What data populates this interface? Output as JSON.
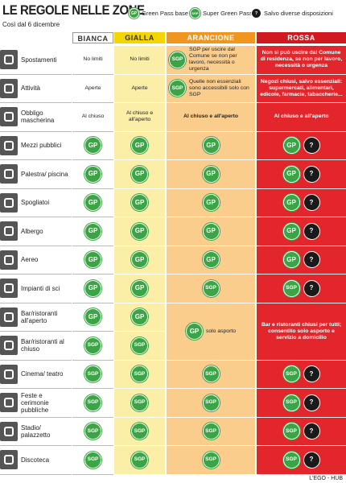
{
  "header": {
    "title": "LE REGOLE NELLE ZONE",
    "subtitle": "Così dal 6 dicembre",
    "legend": [
      {
        "icon": "GP",
        "label": "Green Pass base"
      },
      {
        "icon": "SGP",
        "label": "Super Green Pass"
      },
      {
        "icon": "?",
        "label": "Salvo diverse disposizioni"
      }
    ]
  },
  "table": {
    "columns": [
      "BIANCA",
      "GIALLA",
      "ARANCIONE",
      "ROSSA"
    ],
    "rows": [
      {
        "label": "Spostamenti",
        "cells": [
          {
            "text": "No limiti"
          },
          {
            "text": "No limiti"
          },
          {
            "badges": [
              "SGP"
            ],
            "text": "SGP per uscire dal Comune se non per lavoro, necessità o urgenza"
          },
          {
            "text": "Non si può uscire dal Comune di residenza, se non per lavoro, necessità o urgenza"
          }
        ]
      },
      {
        "label": "Attività",
        "cells": [
          {
            "text": "Aperte"
          },
          {
            "text": "Aperte"
          },
          {
            "badges": [
              "SGP"
            ],
            "text": "Quelle non essenziali sono accessibili solo con SGP"
          },
          {
            "text": "Negozi chiusi, salvo essenziali: supermercati, alimentari, edicole, farmacie, tabaccherie..."
          }
        ]
      },
      {
        "label": "Obbligo mascherina",
        "cells": [
          {
            "text": "Al chiuso"
          },
          {
            "text": "Al chiuso e all'aperto"
          },
          {
            "text": "Al chiuso e all'aperto"
          },
          {
            "text": "Al chiuso e all'aperto"
          }
        ]
      },
      {
        "label": "Mezzi pubblici",
        "cells": [
          {
            "badges": [
              "GP"
            ]
          },
          {
            "badges": [
              "GP"
            ]
          },
          {
            "badges": [
              "GP"
            ]
          },
          {
            "badges": [
              "GP",
              "?"
            ]
          }
        ]
      },
      {
        "label": "Palestra/ piscina",
        "cells": [
          {
            "badges": [
              "GP"
            ]
          },
          {
            "badges": [
              "GP"
            ]
          },
          {
            "badges": [
              "GP"
            ]
          },
          {
            "badges": [
              "GP",
              "?"
            ]
          }
        ]
      },
      {
        "label": "Spogliatoi",
        "cells": [
          {
            "badges": [
              "GP"
            ]
          },
          {
            "badges": [
              "GP"
            ]
          },
          {
            "badges": [
              "GP"
            ]
          },
          {
            "badges": [
              "GP",
              "?"
            ]
          }
        ]
      },
      {
        "label": "Albergo",
        "cells": [
          {
            "badges": [
              "GP"
            ]
          },
          {
            "badges": [
              "GP"
            ]
          },
          {
            "badges": [
              "GP"
            ]
          },
          {
            "badges": [
              "GP",
              "?"
            ]
          }
        ]
      },
      {
        "label": "Aereo",
        "cells": [
          {
            "badges": [
              "GP"
            ]
          },
          {
            "badges": [
              "GP"
            ]
          },
          {
            "badges": [
              "GP"
            ]
          },
          {
            "badges": [
              "GP",
              "?"
            ]
          }
        ]
      },
      {
        "label": "Impianti di sci",
        "cells": [
          {
            "badges": [
              "GP"
            ]
          },
          {
            "badges": [
              "GP"
            ]
          },
          {
            "badges": [
              "SGP"
            ]
          },
          {
            "badges": [
              "SGP",
              "?"
            ]
          }
        ]
      },
      {
        "label": "Bar/ristoranti all'aperto",
        "cells": [
          {
            "badges": [
              "GP"
            ]
          },
          {
            "badges": [
              "GP"
            ]
          },
          {
            "badges": [
              "GP"
            ],
            "text": "solo asporto"
          },
          {
            "text": "Bar e ristoranti chiusi per tutti; consentito solo asporto e servizio a domicilio"
          }
        ]
      },
      {
        "label": "Bar/ristoranti al chiuso",
        "cells": [
          {
            "badges": [
              "SGP"
            ]
          },
          {
            "badges": [
              "SGP"
            ]
          },
          null,
          null
        ]
      },
      {
        "label": "Cinema/ teatro",
        "cells": [
          {
            "badges": [
              "SGP"
            ]
          },
          {
            "badges": [
              "SGP"
            ]
          },
          {
            "badges": [
              "SGP"
            ]
          },
          {
            "badges": [
              "SGP",
              "?"
            ]
          }
        ]
      },
      {
        "label": "Feste e cerimonie pubbliche",
        "cells": [
          {
            "badges": [
              "SGP"
            ]
          },
          {
            "badges": [
              "SGP"
            ]
          },
          {
            "badges": [
              "SGP"
            ]
          },
          {
            "badges": [
              "SGP",
              "?"
            ]
          }
        ]
      },
      {
        "label": "Stadio/ palazzetto",
        "cells": [
          {
            "badges": [
              "SGP"
            ]
          },
          {
            "badges": [
              "SGP"
            ]
          },
          {
            "badges": [
              "SGP"
            ]
          },
          {
            "badges": [
              "SGP",
              "?"
            ]
          }
        ]
      },
      {
        "label": "Discoteca",
        "cells": [
          {
            "badges": [
              "SGP"
            ]
          },
          {
            "badges": [
              "SGP"
            ]
          },
          {
            "badges": [
              "SGP"
            ]
          },
          {
            "badges": [
              "SGP",
              "?"
            ]
          }
        ]
      }
    ]
  },
  "footer": {
    "credit": "L'EGO - HUB"
  }
}
